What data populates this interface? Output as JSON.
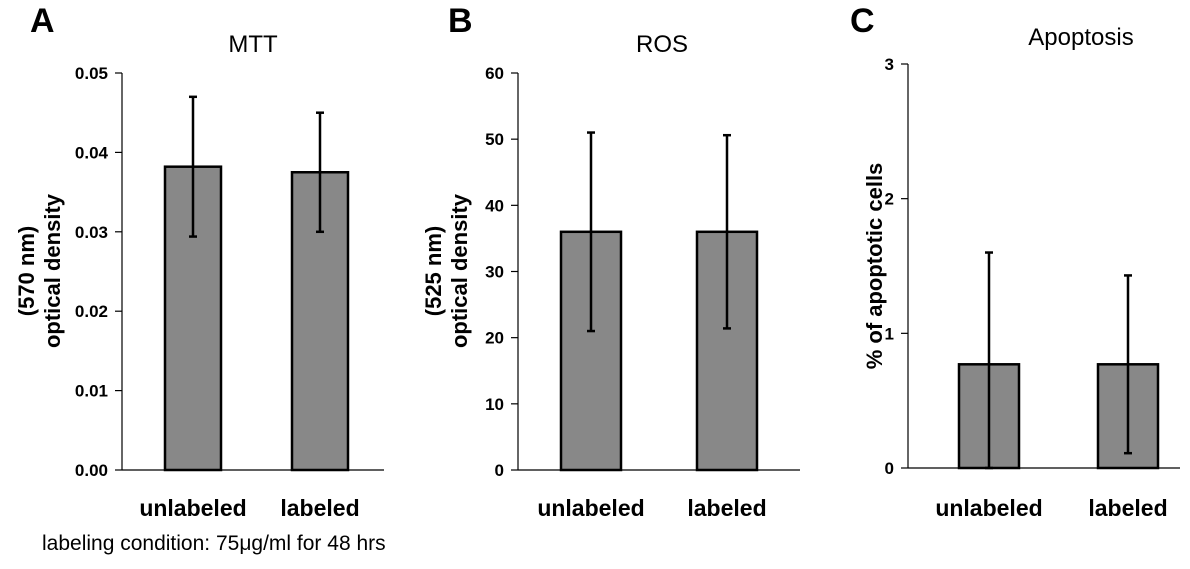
{
  "caption": "labeling condition: 75μg/ml for 48 hrs",
  "style": {
    "bar_fill": "#888888",
    "bar_stroke": "#000000",
    "axis_color": "#000000"
  },
  "chart_data": [
    {
      "type": "bar",
      "panel_label": "A",
      "title": "MTT",
      "ylabel_lines": [
        "(570 nm)",
        "optical density"
      ],
      "categories": [
        "unlabeled",
        "labeled"
      ],
      "values": [
        0.0382,
        0.0375
      ],
      "errors": [
        0.0088,
        0.0075
      ],
      "ylim": [
        0,
        0.05
      ],
      "yticks": [
        0.0,
        0.01,
        0.02,
        0.03,
        0.04,
        0.05
      ],
      "ytick_labels": [
        "0.00",
        "0.01",
        "0.02",
        "0.03",
        "0.04",
        "0.05"
      ],
      "grid": false
    },
    {
      "type": "bar",
      "panel_label": "B",
      "title": "ROS",
      "ylabel_lines": [
        "(525 nm)",
        "optical density"
      ],
      "categories": [
        "unlabeled",
        "labeled"
      ],
      "values": [
        36.0,
        36.0
      ],
      "errors": [
        15.0,
        14.6
      ],
      "ylim": [
        0,
        60
      ],
      "yticks": [
        0,
        10,
        20,
        30,
        40,
        50,
        60
      ],
      "ytick_labels": [
        "0",
        "10",
        "20",
        "30",
        "40",
        "50",
        "60"
      ],
      "grid": false
    },
    {
      "type": "bar",
      "panel_label": "C",
      "title": "Apoptosis",
      "ylabel_lines": [
        "% of apoptotic cells"
      ],
      "categories": [
        "unlabeled",
        "labeled"
      ],
      "values": [
        0.77,
        0.77
      ],
      "errors": [
        0.83,
        0.66
      ],
      "ylim": [
        0,
        3
      ],
      "yticks": [
        0,
        1,
        2,
        3
      ],
      "ytick_labels": [
        "0",
        "1",
        "2",
        "3"
      ],
      "grid": false
    }
  ]
}
